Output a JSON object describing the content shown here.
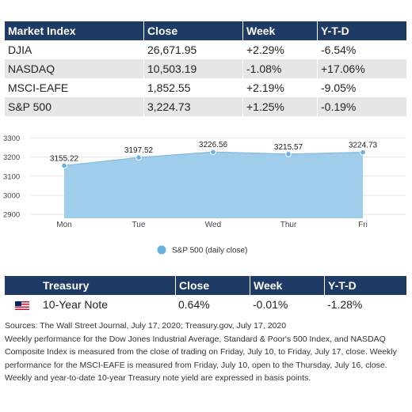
{
  "market_table": {
    "headers": [
      "Market Index",
      "Close",
      "Week",
      "Y-T-D"
    ],
    "rows": [
      [
        "DJIA",
        "26,671.95",
        "+2.29%",
        "-6.54%"
      ],
      [
        "NASDAQ",
        "10,503.19",
        "-1.08%",
        "+17.06%"
      ],
      [
        "MSCI-EAFE",
        "1,852.55",
        "+2.19%",
        "-9.05%"
      ],
      [
        "S&P 500",
        "3,224.73",
        "+1.25%",
        "-0.19%"
      ]
    ]
  },
  "chart_data": {
    "type": "area",
    "categories": [
      "Mon",
      "Tue",
      "Wed",
      "Thur",
      "Fri"
    ],
    "series": [
      {
        "name": "S&P 500 (daily close)",
        "values": [
          3155.22,
          3197.52,
          3226.56,
          3215.57,
          3224.73
        ]
      }
    ],
    "data_labels": [
      "3155.22",
      "3197.52",
      "3226.56",
      "3215.57",
      "3224.73"
    ],
    "yticks": [
      2900,
      3000,
      3100,
      3200,
      3300
    ],
    "ylim": [
      2880,
      3310
    ],
    "grid": true,
    "legend": "bottom-center",
    "colors": {
      "area": "#9fcdea",
      "line": "#7db8e0",
      "marker": "#6ab0de",
      "grid": "#e3e3e3"
    }
  },
  "treasury_table": {
    "headers": [
      "Treasury",
      "Close",
      "Week",
      "Y-T-D"
    ],
    "row": {
      "flag_icon": "us-flag-icon",
      "name": "10-Year Note",
      "close": "0.64%",
      "week": "-0.01%",
      "ytd": "-1.28%"
    }
  },
  "footnote": {
    "line1": "Sources: The Wall Street Journal, July 17, 2020; Treasury.gov, July 17, 2020",
    "line2": "Weekly performance for the Dow Jones Industrial Average, Standard & Poor's 500 Index, and NASDAQ Composite Index is measured from the close of trading on Friday, July 10, to Friday, July 17, close. Weekly performance for the MSCI-EAFE is measured from Friday, July 10, open to the Thursday, July 16, close. Weekly and year-to-date 10-year Treasury note yield are expressed in basis points."
  },
  "colors": {
    "header_bg": "#1f3a64",
    "row_shade": "#e6e6e6"
  }
}
